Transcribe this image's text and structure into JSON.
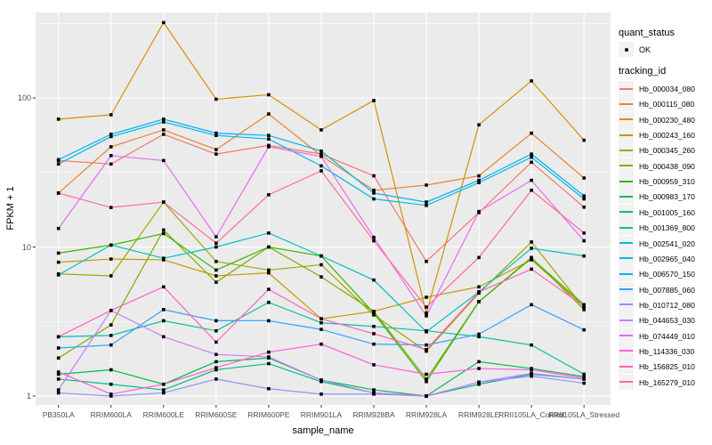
{
  "figure": {
    "x_axis_title": "sample_name",
    "y_axis_title": "FPKM + 1",
    "colors": {
      "panel_bg": "#EBEBEB",
      "grid": "#FFFFFF",
      "point": "#000000",
      "tick": "#333333",
      "tick_text": "#4D4D4D",
      "legend_key_bg": "#F2F2F2"
    }
  },
  "legend": {
    "quant_title": "quant_status",
    "quant_items": [
      {
        "label": "OK",
        "symbol": "point"
      }
    ],
    "tracking_title": "tracking_id"
  },
  "chart_data": {
    "type": "line",
    "y_scale": "log10",
    "grid": true,
    "legend_position": "right",
    "xlabel": "sample_name",
    "ylabel": "FPKM + 1",
    "y_ticks": [
      1,
      10,
      100
    ],
    "y_tick_labels": [
      "1",
      "10",
      "100"
    ],
    "y_minor_ticks": [
      3.162,
      31.62,
      316.2
    ],
    "ylim": [
      0.87,
      375
    ],
    "x_categories": [
      "PB350LA",
      "RRIM600LA",
      "RRIM600LE",
      "RRIM600SE",
      "RRIM600PE",
      "RRIM901LA",
      "RRIM928BA",
      "RRIM928LA",
      "RRIM928LE",
      "RRII105LA_Control",
      "RRII105LA_Stressed"
    ],
    "marker": "black-square",
    "series": [
      {
        "name": "Hb_000034_080",
        "color": "#F8766D",
        "values": [
          38,
          36,
          57,
          42,
          48,
          42,
          30,
          8,
          17,
          37,
          18.5
        ]
      },
      {
        "name": "Hb_000115_080",
        "color": "#EA8331",
        "values": [
          23,
          47,
          61,
          45,
          78,
          41,
          24,
          26,
          30,
          58,
          29
        ]
      },
      {
        "name": "Hb_000230_480",
        "color": "#D89000",
        "values": [
          72,
          77,
          320,
          98,
          105,
          61,
          96,
          3.6,
          66,
          130,
          52
        ]
      },
      {
        "name": "Hb_000243_160",
        "color": "#C09B00",
        "values": [
          7.9,
          8.3,
          8.2,
          6.4,
          6.7,
          3.3,
          3.7,
          4.6,
          5.4,
          8.2,
          4
        ]
      },
      {
        "name": "Hb_000345_260",
        "color": "#A3A500",
        "values": [
          6.6,
          6.4,
          20,
          8,
          7,
          7.6,
          3.5,
          2,
          4.9,
          10.8,
          3.9
        ]
      },
      {
        "name": "Hb_000438_090",
        "color": "#7CAE00",
        "values": [
          1.8,
          3,
          13,
          5.8,
          10,
          6.3,
          3.7,
          1.3,
          4.3,
          8.5,
          3.8
        ]
      },
      {
        "name": "Hb_000959_310",
        "color": "#39B600",
        "values": [
          9.1,
          10.3,
          12.3,
          7,
          10,
          8.7,
          3.6,
          1.25,
          4.3,
          8.4,
          4.1
        ]
      },
      {
        "name": "Hb_000983_170",
        "color": "#00BB4E",
        "values": [
          1.4,
          1.5,
          1.2,
          1.7,
          1.8,
          1.28,
          1.1,
          1,
          1.7,
          1.53,
          1.35
        ]
      },
      {
        "name": "Hb_001005_160",
        "color": "#00BF7D",
        "values": [
          1.3,
          1.2,
          1.1,
          1.5,
          1.65,
          1.25,
          1.05,
          1,
          1.2,
          1.4,
          1.3
        ]
      },
      {
        "name": "Hb_001369_800",
        "color": "#00C1A3",
        "values": [
          2.5,
          2.55,
          3.2,
          2.74,
          4.25,
          3.1,
          2.93,
          2.74,
          2.5,
          2.2,
          1.4
        ]
      },
      {
        "name": "Hb_002541_020",
        "color": "#00BFC4",
        "values": [
          6.5,
          10.3,
          8.4,
          10,
          12.4,
          8.7,
          6,
          2.7,
          5,
          9.8,
          8.7
        ]
      },
      {
        "name": "Hb_002965_040",
        "color": "#00BAE0",
        "values": [
          36,
          55,
          69,
          56,
          53,
          35,
          21,
          19,
          27,
          40,
          21
        ]
      },
      {
        "name": "Hb_006570_150",
        "color": "#00B0F6",
        "values": [
          38.5,
          57,
          72,
          58,
          56,
          44,
          23,
          20,
          28,
          42,
          22
        ]
      },
      {
        "name": "Hb_007885_060",
        "color": "#35A2FF",
        "values": [
          2.1,
          2.2,
          3.8,
          3.2,
          3.2,
          2.8,
          2.23,
          2.2,
          2.6,
          4.1,
          2.78
        ]
      },
      {
        "name": "Hb_010712_080",
        "color": "#9590FF",
        "values": [
          1.05,
          1,
          1.05,
          1.3,
          1.12,
          1.03,
          1.03,
          1,
          1.24,
          1.36,
          1.22
        ]
      },
      {
        "name": "Hb_044653_030",
        "color": "#C77CFF",
        "values": [
          1.1,
          3.75,
          2.5,
          1.9,
          1.83,
          1.28,
          1.05,
          1,
          1.24,
          1.42,
          1.3
        ]
      },
      {
        "name": "Hb_074449_010",
        "color": "#E76BF3",
        "values": [
          13.3,
          41,
          38,
          11.7,
          47,
          40.5,
          11.6,
          3.45,
          17.3,
          28,
          11
        ]
      },
      {
        "name": "Hb_114336_030",
        "color": "#FA62DB",
        "values": [
          1.45,
          1.03,
          1.2,
          1.55,
          1.97,
          2.23,
          1.62,
          1.4,
          1.53,
          1.5,
          1.32
        ]
      },
      {
        "name": "Hb_156825_010",
        "color": "#FF62BC",
        "values": [
          2.5,
          3.75,
          5.4,
          2.3,
          5.2,
          3.3,
          2.62,
          2.05,
          5,
          7.1,
          4
        ]
      },
      {
        "name": "Hb_165279_010",
        "color": "#FF6A98",
        "values": [
          23,
          18.4,
          20,
          10.6,
          22.4,
          32.4,
          11,
          3.95,
          8.5,
          24,
          12.4
        ]
      }
    ]
  }
}
